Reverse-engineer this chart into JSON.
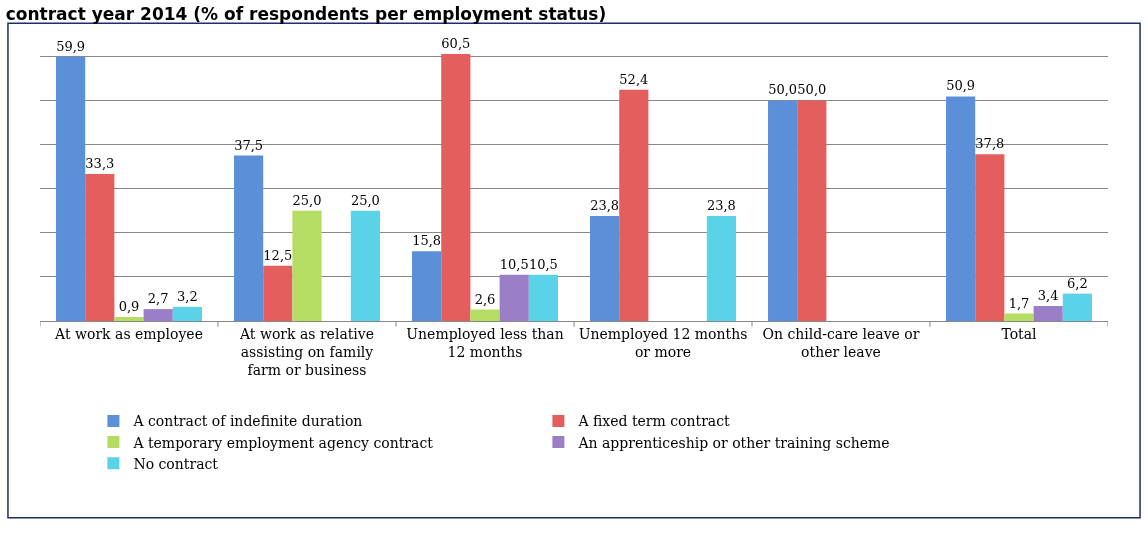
{
  "chart_data": {
    "type": "bar",
    "title": "contract year 2014 (% of respondents per employment status)",
    "categories": [
      "At work as employee",
      "At work as relative assisting on family farm or business",
      "Unemployed less than 12 months",
      "Unemployed 12 months or more",
      "On child-care leave or other leave",
      "Total"
    ],
    "series": [
      {
        "name": "A contract of indefinite duration",
        "color": "#5b8fd8",
        "values": [
          59.9,
          37.5,
          15.8,
          23.8,
          50.0,
          50.9
        ],
        "value_labels": [
          "59,9",
          "37,5",
          "15,8",
          "23,8",
          "50,0",
          "50,9"
        ]
      },
      {
        "name": "A fixed term contract",
        "color": "#e45e5e",
        "values": [
          33.3,
          12.5,
          60.5,
          52.4,
          50.0,
          37.8
        ],
        "value_labels": [
          "33,3",
          "12,5",
          "60,5",
          "52,4",
          "50,0",
          "37,8"
        ]
      },
      {
        "name": "A temporary employment agency contract",
        "color": "#b5dd64",
        "values": [
          0.9,
          25.0,
          2.6,
          null,
          null,
          1.7
        ],
        "value_labels": [
          "0,9",
          "25,0",
          "2,6",
          null,
          null,
          "1,7"
        ]
      },
      {
        "name": "An apprenticeship or other training scheme",
        "color": "#9a7ec8",
        "values": [
          2.7,
          null,
          10.5,
          null,
          null,
          3.4
        ],
        "value_labels": [
          "2,7",
          null,
          "10,5",
          null,
          null,
          "3,4"
        ]
      },
      {
        "name": "No contract",
        "color": "#5ad3e8",
        "values": [
          3.2,
          25.0,
          10.5,
          23.8,
          null,
          6.2
        ],
        "value_labels": [
          "3,2",
          "25,0",
          "10,5",
          "23,8",
          null,
          "6,2"
        ]
      }
    ],
    "tick_labels": "x",
    "grid": "y",
    "legend": "bottom"
  }
}
